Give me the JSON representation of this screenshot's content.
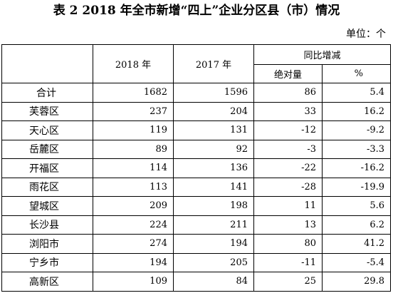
{
  "title": "表 2 2018 年全市新增“四上”企业分区县（市）情况",
  "unit": "单位：个",
  "headers": {
    "col_2018": "2018 年",
    "col_2017": "2017 年",
    "group": "同比增减",
    "abs": "绝对量",
    "pct": "%"
  },
  "rows": [
    {
      "name": "合计",
      "y2018": "1682",
      "y2017": "1596",
      "abs": "86",
      "pct": "5.4"
    },
    {
      "name": "芙蓉区",
      "y2018": "237",
      "y2017": "204",
      "abs": "33",
      "pct": "16.2"
    },
    {
      "name": "天心区",
      "y2018": "119",
      "y2017": "131",
      "abs": "-12",
      "pct": "-9.2"
    },
    {
      "name": "岳麓区",
      "y2018": "89",
      "y2017": "92",
      "abs": "-3",
      "pct": "-3.3"
    },
    {
      "name": "开福区",
      "y2018": "114",
      "y2017": "136",
      "abs": "-22",
      "pct": "-16.2"
    },
    {
      "name": "雨花区",
      "y2018": "113",
      "y2017": "141",
      "abs": "-28",
      "pct": "-19.9"
    },
    {
      "name": "望城区",
      "y2018": "209",
      "y2017": "198",
      "abs": "11",
      "pct": "5.6"
    },
    {
      "name": "长沙县",
      "y2018": "224",
      "y2017": "211",
      "abs": "13",
      "pct": "6.2"
    },
    {
      "name": "浏阳市",
      "y2018": "274",
      "y2017": "194",
      "abs": "80",
      "pct": "41.2"
    },
    {
      "name": "宁乡市",
      "y2018": "194",
      "y2017": "205",
      "abs": "-11",
      "pct": "-5.4"
    },
    {
      "name": "高新区",
      "y2018": "109",
      "y2017": "84",
      "abs": "25",
      "pct": "29.8"
    }
  ]
}
